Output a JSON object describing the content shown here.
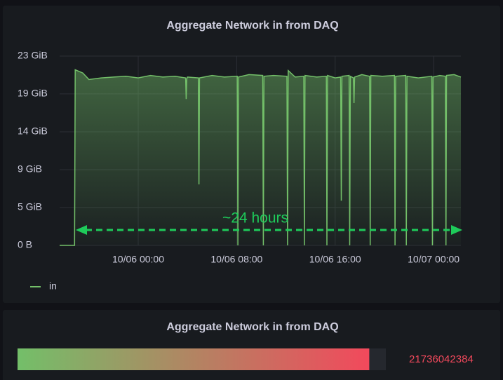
{
  "chart_data": [
    {
      "type": "line",
      "title": "Aggregate Network in from DAQ",
      "annotation": "~24 hours",
      "xlim": [
        "10/05 17:37",
        "10/07 02:13"
      ],
      "xticks": [
        "10/06 00:00",
        "10/06 08:00",
        "10/06 16:00",
        "10/07 00:00"
      ],
      "ylim": [
        0,
        23.28
      ],
      "yticks": [
        {
          "value": 0,
          "label": "0 B"
        },
        {
          "value": 4.66,
          "label": "5 GiB"
        },
        {
          "value": 9.31,
          "label": "9 GiB"
        },
        {
          "value": 13.97,
          "label": "14 GiB"
        },
        {
          "value": 18.63,
          "label": "19 GiB"
        },
        {
          "value": 23.28,
          "label": "23 GiB"
        }
      ],
      "grid": true,
      "x": [
        "10/05 17:37",
        "10/05 18:50",
        "10/05 18:53",
        "10/05 19:30",
        "10/05 20:00",
        "10/05 21:00",
        "10/05 22:00",
        "10/05 23:00",
        "10/06 00:00",
        "10/06 01:00",
        "10/06 02:00",
        "10/06 03:00",
        "10/06 03:51",
        "10/06 03:54",
        "10/06 03:57",
        "10/06 04:00",
        "10/06 04:53",
        "10/06 04:56",
        "10/06 04:59",
        "10/06 06:00",
        "10/06 07:00",
        "10/06 08:03",
        "10/06 08:06",
        "10/06 08:09",
        "10/06 09:00",
        "10/06 10:07",
        "10/06 10:10",
        "10/06 10:13",
        "10/06 11:00",
        "10/06 12:05",
        "10/06 12:08",
        "10/06 12:11",
        "10/06 12:45",
        "10/06 13:27",
        "10/06 13:30",
        "10/06 13:33",
        "10/06 14:30",
        "10/06 15:17",
        "10/06 15:20",
        "10/06 15:23",
        "10/06 16:00",
        "10/06 16:27",
        "10/06 16:30",
        "10/06 16:33",
        "10/06 17:08",
        "10/06 17:11",
        "10/06 17:14",
        "10/06 17:29",
        "10/06 17:32",
        "10/06 17:35",
        "10/06 18:10",
        "10/06 18:48",
        "10/06 18:51",
        "10/06 18:54",
        "10/06 19:50",
        "10/06 20:49",
        "10/06 20:52",
        "10/06 20:55",
        "10/06 21:44",
        "10/06 21:47",
        "10/06 21:50",
        "10/06 22:45",
        "10/06 23:51",
        "10/06 23:54",
        "10/06 23:57",
        "10/07 00:30",
        "10/07 00:57",
        "10/07 01:00",
        "10/07 01:03",
        "10/07 01:40",
        "10/07 02:13"
      ],
      "series": [
        {
          "name": "in",
          "color": "#73bf69",
          "values": [
            0,
            0,
            21.6,
            21.2,
            20.4,
            20.6,
            20.7,
            20.8,
            20.6,
            20.9,
            20.7,
            20.8,
            20.6,
            18.0,
            20.5,
            20.7,
            20.6,
            7.5,
            20.6,
            20.9,
            20.7,
            20.8,
            0,
            20.7,
            21.0,
            20.9,
            0,
            20.8,
            20.9,
            20.8,
            0,
            21.5,
            20.7,
            20.8,
            0,
            20.9,
            20.7,
            20.8,
            0,
            20.9,
            20.6,
            20.7,
            5.5,
            20.8,
            20.9,
            0,
            20.8,
            20.6,
            17.5,
            20.7,
            21.0,
            20.8,
            0,
            20.9,
            20.8,
            20.9,
            0,
            20.8,
            20.9,
            0,
            20.8,
            20.6,
            20.8,
            0,
            20.7,
            20.9,
            20.8,
            0,
            20.9,
            21.0,
            20.7
          ]
        }
      ]
    },
    {
      "type": "bargauge",
      "title": "Aggregate Network in from DAQ",
      "values": [
        21736042384
      ],
      "xlim": [
        0,
        22760000000
      ]
    }
  ]
}
